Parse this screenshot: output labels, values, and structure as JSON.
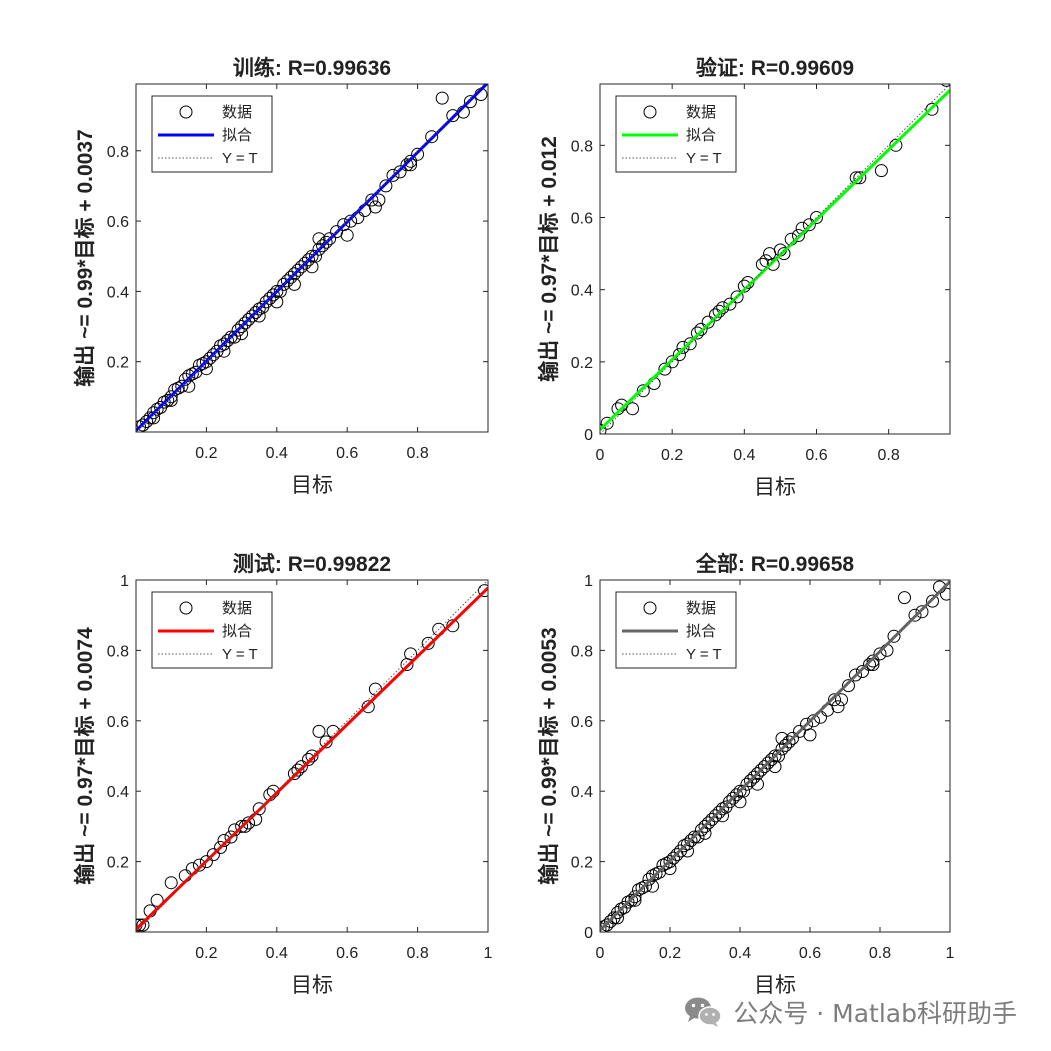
{
  "figure": {
    "background": "#ffffff",
    "watermark": {
      "icon": "wechat-icon",
      "text": "公众号 · Matlab科研助手"
    }
  },
  "chart_data": [
    {
      "type": "scatter",
      "title": "训练: R=0.99636",
      "xlabel": "目标",
      "ylabel": "输出 ~= 0.99*目标 + 0.0037",
      "xlim": [
        0,
        1
      ],
      "ylim": [
        0,
        0.99
      ],
      "xticks": [
        0.2,
        0.4,
        0.6,
        0.8
      ],
      "xtick_labels": [
        "0.2",
        "0.4",
        "0.6",
        "0.8"
      ],
      "yticks": [
        0.2,
        0.4,
        0.6,
        0.8
      ],
      "ytick_labels": [
        "0.2",
        "0.4",
        "0.6",
        "0.8"
      ],
      "grid": false,
      "legend_position": "top-left",
      "legend": [
        "数据",
        "拟合",
        "Y = T"
      ],
      "fit": {
        "slope": 0.99,
        "intercept": 0.0037,
        "color": "#0000ff"
      },
      "series": [
        {
          "name": "数据",
          "marker": "circle-open",
          "color": "#000000",
          "x": [
            0.01,
            0.02,
            0.03,
            0.04,
            0.05,
            0.06,
            0.07,
            0.08,
            0.09,
            0.1,
            0.11,
            0.12,
            0.13,
            0.14,
            0.15,
            0.16,
            0.17,
            0.18,
            0.19,
            0.2,
            0.21,
            0.22,
            0.23,
            0.24,
            0.25,
            0.26,
            0.27,
            0.28,
            0.29,
            0.3,
            0.31,
            0.32,
            0.33,
            0.34,
            0.35,
            0.36,
            0.37,
            0.38,
            0.39,
            0.4,
            0.41,
            0.42,
            0.43,
            0.44,
            0.45,
            0.46,
            0.47,
            0.48,
            0.49,
            0.5,
            0.51,
            0.52,
            0.53,
            0.54,
            0.55,
            0.57,
            0.59,
            0.61,
            0.63,
            0.65,
            0.67,
            0.69,
            0.71,
            0.73,
            0.75,
            0.77,
            0.78,
            0.8,
            0.84,
            0.87,
            0.9,
            0.93,
            0.95,
            0.98,
            0.05,
            0.1,
            0.15,
            0.2,
            0.25,
            0.3,
            0.35,
            0.4,
            0.45,
            0.5,
            0.52,
            0.6,
            0.68,
            0.78
          ],
          "y": [
            0.015,
            0.02,
            0.03,
            0.04,
            0.055,
            0.065,
            0.07,
            0.085,
            0.09,
            0.1,
            0.12,
            0.125,
            0.13,
            0.15,
            0.16,
            0.165,
            0.17,
            0.19,
            0.195,
            0.2,
            0.21,
            0.22,
            0.23,
            0.245,
            0.25,
            0.26,
            0.27,
            0.27,
            0.29,
            0.3,
            0.31,
            0.32,
            0.33,
            0.34,
            0.35,
            0.355,
            0.37,
            0.38,
            0.39,
            0.4,
            0.4,
            0.42,
            0.43,
            0.44,
            0.45,
            0.46,
            0.47,
            0.48,
            0.49,
            0.5,
            0.5,
            0.52,
            0.53,
            0.54,
            0.55,
            0.57,
            0.59,
            0.6,
            0.61,
            0.63,
            0.66,
            0.66,
            0.7,
            0.73,
            0.74,
            0.76,
            0.77,
            0.79,
            0.84,
            0.95,
            0.9,
            0.91,
            0.94,
            0.96,
            0.04,
            0.09,
            0.13,
            0.18,
            0.23,
            0.28,
            0.33,
            0.37,
            0.42,
            0.47,
            0.55,
            0.56,
            0.64,
            0.76
          ]
        }
      ]
    },
    {
      "type": "scatter",
      "title": "验证: R=0.99609",
      "xlabel": "目标",
      "ylabel": "输出 ~= 0.97*目标 + 0.012",
      "xlim": [
        0,
        0.97
      ],
      "ylim": [
        0,
        0.97
      ],
      "xticks": [
        0,
        0.2,
        0.4,
        0.6,
        0.8
      ],
      "xtick_labels": [
        "0",
        "0.2",
        "0.4",
        "0.6",
        "0.8"
      ],
      "yticks": [
        0,
        0.2,
        0.4,
        0.6,
        0.8
      ],
      "ytick_labels": [
        "0",
        "0.2",
        "0.4",
        "0.6",
        "0.8"
      ],
      "grid": false,
      "legend_position": "top-left",
      "legend": [
        "数据",
        "拟合",
        "Y = T"
      ],
      "fit": {
        "slope": 0.97,
        "intercept": 0.012,
        "color": "#00ff00"
      },
      "series": [
        {
          "name": "数据",
          "marker": "circle-open",
          "color": "#000000",
          "x": [
            0.0,
            0.02,
            0.05,
            0.06,
            0.09,
            0.12,
            0.15,
            0.18,
            0.2,
            0.22,
            0.23,
            0.25,
            0.27,
            0.28,
            0.3,
            0.32,
            0.33,
            0.34,
            0.36,
            0.38,
            0.4,
            0.41,
            0.45,
            0.46,
            0.47,
            0.48,
            0.5,
            0.51,
            0.53,
            0.55,
            0.56,
            0.58,
            0.6,
            0.71,
            0.72,
            0.78,
            0.82,
            0.92,
            0.96
          ],
          "y": [
            0.01,
            0.03,
            0.07,
            0.08,
            0.07,
            0.12,
            0.14,
            0.18,
            0.2,
            0.22,
            0.24,
            0.25,
            0.28,
            0.29,
            0.31,
            0.33,
            0.34,
            0.35,
            0.36,
            0.38,
            0.41,
            0.42,
            0.47,
            0.48,
            0.5,
            0.47,
            0.51,
            0.5,
            0.54,
            0.55,
            0.57,
            0.58,
            0.6,
            0.71,
            0.71,
            0.73,
            0.8,
            0.9,
            0.98
          ]
        }
      ]
    },
    {
      "type": "scatter",
      "title": "测试: R=0.99822",
      "xlabel": "目标",
      "ylabel": "输出 ~= 0.97*目标 + 0.0074",
      "xlim": [
        0,
        1
      ],
      "ylim": [
        0,
        1
      ],
      "xticks": [
        0.2,
        0.4,
        0.6,
        0.8,
        1
      ],
      "xtick_labels": [
        "0.2",
        "0.4",
        "0.6",
        "0.8",
        "1"
      ],
      "yticks": [
        0.2,
        0.4,
        0.6,
        0.8,
        1
      ],
      "ytick_labels": [
        "0.2",
        "0.4",
        "0.6",
        "0.8",
        "1"
      ],
      "grid": false,
      "legend_position": "top-left",
      "legend": [
        "数据",
        "拟合",
        "Y = T"
      ],
      "fit": {
        "slope": 0.97,
        "intercept": 0.0074,
        "color": "#ff0000"
      },
      "series": [
        {
          "name": "数据",
          "marker": "circle-open",
          "color": "#000000",
          "x": [
            0.0,
            0.01,
            0.02,
            0.04,
            0.06,
            0.1,
            0.14,
            0.16,
            0.18,
            0.2,
            0.22,
            0.24,
            0.25,
            0.27,
            0.28,
            0.3,
            0.31,
            0.32,
            0.34,
            0.35,
            0.38,
            0.39,
            0.45,
            0.46,
            0.47,
            0.49,
            0.5,
            0.52,
            0.54,
            0.56,
            0.66,
            0.68,
            0.77,
            0.78,
            0.83,
            0.86,
            0.9,
            0.99
          ],
          "y": [
            0.02,
            0.02,
            0.02,
            0.06,
            0.09,
            0.14,
            0.16,
            0.18,
            0.19,
            0.2,
            0.22,
            0.24,
            0.26,
            0.27,
            0.29,
            0.3,
            0.3,
            0.31,
            0.32,
            0.35,
            0.39,
            0.4,
            0.45,
            0.46,
            0.47,
            0.49,
            0.5,
            0.57,
            0.54,
            0.57,
            0.64,
            0.69,
            0.76,
            0.79,
            0.82,
            0.86,
            0.87,
            0.97
          ]
        }
      ]
    },
    {
      "type": "scatter",
      "title": "全部: R=0.99658",
      "xlabel": "目标",
      "ylabel": "输出 ~= 0.99*目标 + 0.0053",
      "xlim": [
        0,
        1
      ],
      "ylim": [
        0,
        1
      ],
      "xticks": [
        0,
        0.2,
        0.4,
        0.6,
        0.8,
        1
      ],
      "xtick_labels": [
        "0",
        "0.2",
        "0.4",
        "0.6",
        "0.8",
        "1"
      ],
      "yticks": [
        0,
        0.2,
        0.4,
        0.6,
        0.8,
        1
      ],
      "ytick_labels": [
        "0",
        "0.2",
        "0.4",
        "0.6",
        "0.8",
        "1"
      ],
      "grid": false,
      "legend_position": "top-left",
      "legend": [
        "数据",
        "拟合",
        "Y = T"
      ],
      "fit": {
        "slope": 0.99,
        "intercept": 0.0053,
        "color": "#666666"
      },
      "series": [
        {
          "name": "数据",
          "marker": "circle-open",
          "color": "#000000",
          "x": [
            0.0,
            0.01,
            0.02,
            0.03,
            0.04,
            0.05,
            0.06,
            0.07,
            0.08,
            0.09,
            0.1,
            0.11,
            0.12,
            0.13,
            0.14,
            0.15,
            0.16,
            0.17,
            0.18,
            0.19,
            0.2,
            0.21,
            0.22,
            0.23,
            0.24,
            0.25,
            0.26,
            0.27,
            0.28,
            0.29,
            0.3,
            0.31,
            0.32,
            0.33,
            0.34,
            0.35,
            0.36,
            0.37,
            0.38,
            0.39,
            0.4,
            0.41,
            0.42,
            0.43,
            0.44,
            0.45,
            0.46,
            0.47,
            0.48,
            0.49,
            0.5,
            0.51,
            0.52,
            0.53,
            0.54,
            0.55,
            0.57,
            0.59,
            0.61,
            0.63,
            0.65,
            0.67,
            0.69,
            0.71,
            0.73,
            0.75,
            0.77,
            0.78,
            0.8,
            0.82,
            0.84,
            0.87,
            0.9,
            0.92,
            0.95,
            0.97,
            0.99,
            0.05,
            0.1,
            0.15,
            0.2,
            0.25,
            0.3,
            0.35,
            0.4,
            0.45,
            0.5,
            0.52,
            0.6,
            0.68,
            0.78
          ],
          "y": [
            0.01,
            0.015,
            0.02,
            0.03,
            0.04,
            0.055,
            0.065,
            0.07,
            0.085,
            0.09,
            0.1,
            0.12,
            0.125,
            0.13,
            0.15,
            0.16,
            0.165,
            0.17,
            0.19,
            0.195,
            0.2,
            0.21,
            0.22,
            0.23,
            0.245,
            0.25,
            0.26,
            0.27,
            0.27,
            0.29,
            0.3,
            0.31,
            0.32,
            0.33,
            0.34,
            0.35,
            0.355,
            0.37,
            0.38,
            0.39,
            0.4,
            0.4,
            0.42,
            0.43,
            0.44,
            0.45,
            0.46,
            0.47,
            0.48,
            0.49,
            0.5,
            0.5,
            0.52,
            0.53,
            0.54,
            0.55,
            0.57,
            0.59,
            0.6,
            0.61,
            0.63,
            0.66,
            0.66,
            0.7,
            0.73,
            0.74,
            0.76,
            0.77,
            0.79,
            0.8,
            0.84,
            0.95,
            0.9,
            0.91,
            0.94,
            0.98,
            0.96,
            0.04,
            0.09,
            0.13,
            0.18,
            0.23,
            0.28,
            0.33,
            0.37,
            0.42,
            0.47,
            0.55,
            0.56,
            0.64,
            0.76
          ]
        }
      ]
    }
  ]
}
